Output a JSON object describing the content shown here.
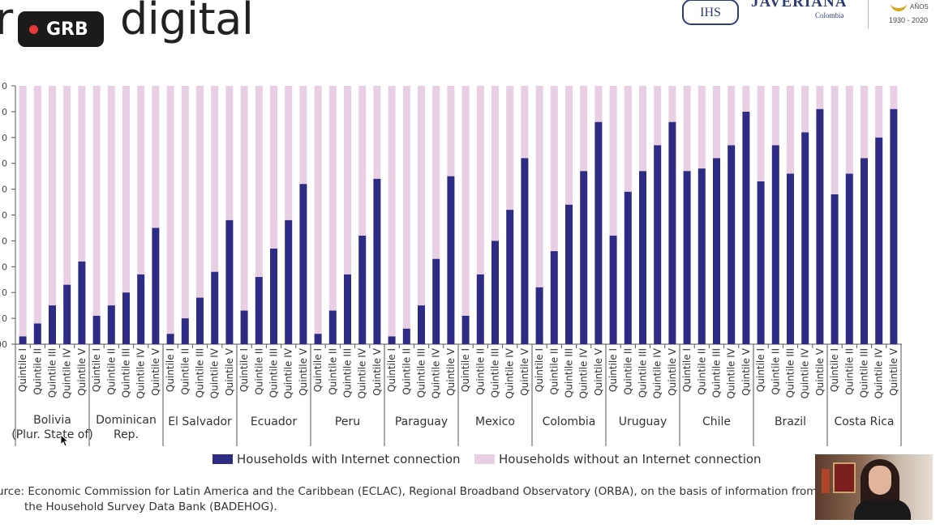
{
  "header": {
    "title_fragment_left": "r",
    "title_fragment_right": "digital",
    "recording_badge": "GRB",
    "logo": {
      "emblem_text": "IHS",
      "name": "JAVERIANA",
      "country": "Colombia",
      "anniversary_label": "AÑOS",
      "anniversary_years": "1930 - 2020"
    }
  },
  "chart_data": {
    "type": "bar",
    "stacked": true,
    "ylim": [
      0,
      100
    ],
    "quintile_labels": [
      "Quintile I",
      "Quintile II",
      "Quintile III",
      "Quintile IV",
      "Quintile V"
    ],
    "groups": [
      {
        "name": "Bolivia (Plur. State of)",
        "with": [
          3,
          8,
          15,
          23,
          32
        ]
      },
      {
        "name": "Dominican Rep.",
        "with": [
          11,
          15,
          20,
          27,
          45
        ]
      },
      {
        "name": "El Salvador",
        "with": [
          4,
          10,
          18,
          28,
          48
        ]
      },
      {
        "name": "Ecuador",
        "with": [
          13,
          26,
          37,
          48,
          62
        ]
      },
      {
        "name": "Peru",
        "with": [
          4,
          13,
          27,
          42,
          64
        ]
      },
      {
        "name": "Paraguay",
        "with": [
          3,
          6,
          15,
          33,
          65
        ]
      },
      {
        "name": "Mexico",
        "with": [
          11,
          27,
          40,
          52,
          72
        ]
      },
      {
        "name": "Colombia",
        "with": [
          22,
          36,
          54,
          67,
          86
        ]
      },
      {
        "name": "Uruguay",
        "with": [
          42,
          59,
          67,
          77,
          86
        ]
      },
      {
        "name": "Chile",
        "with": [
          67,
          68,
          72,
          77,
          90
        ]
      },
      {
        "name": "Brazil",
        "with": [
          63,
          77,
          66,
          82,
          91
        ]
      },
      {
        "name": "Costa Rica",
        "with": [
          58,
          66,
          72,
          80,
          91
        ]
      }
    ],
    "series": [
      {
        "name": "Households with Internet connection",
        "color": "#2e2b84"
      },
      {
        "name": "Households without an Internet connection",
        "color": "#e8cfe3"
      }
    ],
    "y_tick_labels": [
      "00",
      "0",
      "0",
      "0",
      "0",
      "0",
      "0",
      "0",
      "0",
      "0",
      "0"
    ]
  },
  "legend": {
    "with_label": "Households with Internet connection",
    "without_label": "Households without an Internet connection"
  },
  "source": {
    "line1": "urce: Economic Commission for Latin America and the Caribbean (ECLAC), Regional Broadband Observatory (ORBA), on the basis of information from",
    "line2": "the Household Survey Data Bank (BADEHOG)."
  }
}
